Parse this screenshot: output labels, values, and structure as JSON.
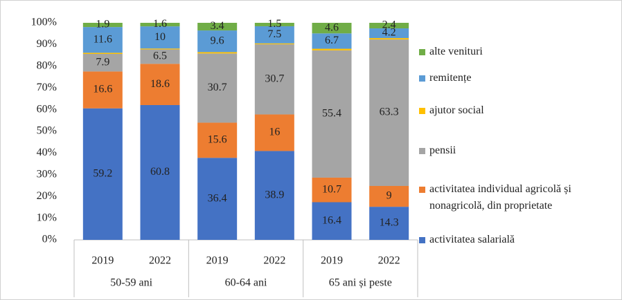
{
  "chart_data": {
    "type": "bar",
    "stacked": "percent",
    "categories": [
      "2019",
      "2022",
      "2019",
      "2022",
      "2019",
      "2022"
    ],
    "groups": [
      "50-59 ani",
      "60-64 ani",
      "65 ani și peste"
    ],
    "series": [
      {
        "name": "activitatea salarială",
        "color": "#4472c4",
        "values": [
          59.2,
          60.8,
          36.4,
          38.9,
          16.4,
          14.3
        ]
      },
      {
        "name": "activitatea individual agricolă și nonagricolă, din proprietate",
        "color": "#ed7d31",
        "values": [
          16.6,
          18.6,
          15.6,
          16,
          10.7,
          9
        ]
      },
      {
        "name": "pensii",
        "color": "#a5a5a5",
        "values": [
          7.9,
          6.5,
          30.7,
          30.7,
          55.4,
          63.3
        ]
      },
      {
        "name": "ajutor social",
        "color": "#ffc000",
        "values": [
          0.5,
          0.4,
          0.6,
          0.4,
          0.7,
          0.6
        ]
      },
      {
        "name": "remitențe",
        "color": "#5b9bd5",
        "values": [
          11.6,
          10,
          9.6,
          7.5,
          6.7,
          4.2
        ]
      },
      {
        "name": "alte venituri",
        "color": "#70ad47",
        "values": [
          1.9,
          1.6,
          3.4,
          1.5,
          4.6,
          2.4
        ]
      }
    ],
    "data_labels": [
      true,
      true,
      true,
      false,
      true,
      true
    ],
    "ylim": [
      0,
      100
    ],
    "yticks": [
      {
        "value": 0,
        "label": "0%"
      },
      {
        "value": 10,
        "label": "10%"
      },
      {
        "value": 20,
        "label": "20%"
      },
      {
        "value": 30,
        "label": "30%"
      },
      {
        "value": 40,
        "label": "40%"
      },
      {
        "value": 50,
        "label": "50%"
      },
      {
        "value": 60,
        "label": "60%"
      },
      {
        "value": 70,
        "label": "70%"
      },
      {
        "value": 80,
        "label": "80%"
      },
      {
        "value": 90,
        "label": "90%"
      },
      {
        "value": 100,
        "label": "100%"
      }
    ],
    "grid": false,
    "legend": "right"
  }
}
